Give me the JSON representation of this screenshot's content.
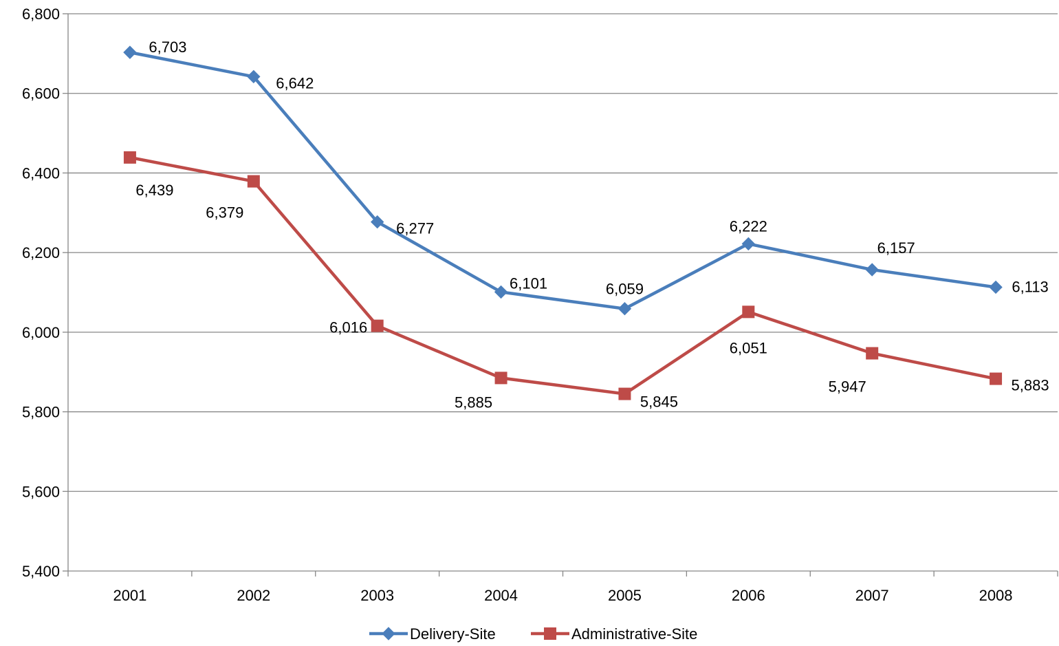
{
  "chart_data": {
    "type": "line",
    "categories": [
      "2001",
      "2002",
      "2003",
      "2004",
      "2005",
      "2006",
      "2007",
      "2008"
    ],
    "series": [
      {
        "name": "Delivery-Site",
        "color": "#4A7EBB",
        "marker": "diamond",
        "values": [
          6703,
          6642,
          6277,
          6101,
          6059,
          6222,
          6157,
          6113
        ],
        "labels": [
          "6,703",
          "6,642",
          "6,277",
          "6,101",
          "6,059",
          "6,222",
          "6,157",
          "6,113"
        ]
      },
      {
        "name": "Administrative-Site",
        "color": "#BE4B48",
        "marker": "square",
        "values": [
          6439,
          6379,
          6016,
          5885,
          5845,
          6051,
          5947,
          5883
        ],
        "labels": [
          "6,439",
          "6,379",
          "6,016",
          "5,885",
          "5,845",
          "6,051",
          "5,947",
          "5,883"
        ]
      }
    ],
    "ylim": [
      5400,
      6800
    ],
    "yticks": [
      5400,
      5600,
      5800,
      6000,
      6200,
      6400,
      6600,
      6800
    ],
    "ytick_labels": [
      "5,400",
      "5,600",
      "5,800",
      "6,000",
      "6,200",
      "6,400",
      "6,600",
      "6,800"
    ],
    "grid": true,
    "legend_position": "bottom",
    "title": "",
    "xlabel": "",
    "ylabel": ""
  }
}
